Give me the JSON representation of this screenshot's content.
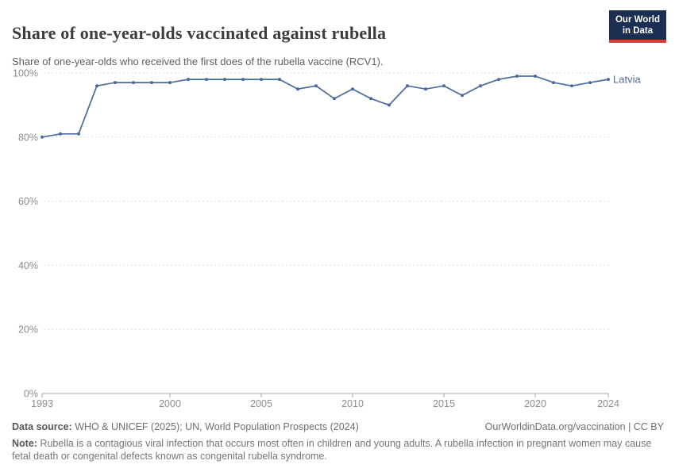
{
  "header": {
    "title": "Share of one-year-olds vaccinated against rubella",
    "subtitle": "Share of one-year-olds who received the first does of the rubella vaccine (RCV1)."
  },
  "logo": {
    "line1": "Our World",
    "line2": "in Data",
    "bg_color": "#1a2e54",
    "accent_color": "#dc3a32"
  },
  "chart_data": {
    "type": "line",
    "title": "Share of one-year-olds vaccinated against rubella",
    "xlabel": "",
    "ylabel": "",
    "xlim": [
      1993,
      2024
    ],
    "ylim": [
      0,
      100
    ],
    "x_ticks": [
      1993,
      2000,
      2005,
      2010,
      2015,
      2020,
      2024
    ],
    "y_ticks": [
      0,
      20,
      40,
      60,
      80,
      100
    ],
    "y_tick_suffix": "%",
    "grid": "horizontal-dashed",
    "legend_position": "end-of-line",
    "series": [
      {
        "name": "Latvia",
        "color": "#4c6a9c",
        "x": [
          1993,
          1994,
          1995,
          1996,
          1997,
          1998,
          1999,
          2000,
          2001,
          2002,
          2003,
          2004,
          2005,
          2006,
          2007,
          2008,
          2009,
          2010,
          2011,
          2012,
          2013,
          2014,
          2015,
          2016,
          2017,
          2018,
          2019,
          2020,
          2021,
          2022,
          2023,
          2024
        ],
        "values": [
          80,
          81,
          81,
          96,
          97,
          97,
          97,
          97,
          98,
          98,
          98,
          98,
          98,
          98,
          95,
          96,
          92,
          95,
          92,
          90,
          96,
          95,
          96,
          93,
          96,
          98,
          99,
          99,
          97,
          96,
          97,
          98
        ]
      }
    ],
    "colors": {
      "grid": "#dcdcdc",
      "axis": "#a6a6a6",
      "tick_label": "#8c8c8c"
    }
  },
  "footer": {
    "datasource_label": "Data source:",
    "datasource_text": " WHO & UNICEF (2025); UN, World Population Prospects (2024)",
    "link_text": "OurWorldinData.org/vaccination | CC BY",
    "note_label": "Note:",
    "note_text": " Rubella is a contagious viral infection that occurs most often in children and young adults. A rubella infection in pregnant women may cause fetal death or congenital defects known as congenital rubella syndrome."
  }
}
